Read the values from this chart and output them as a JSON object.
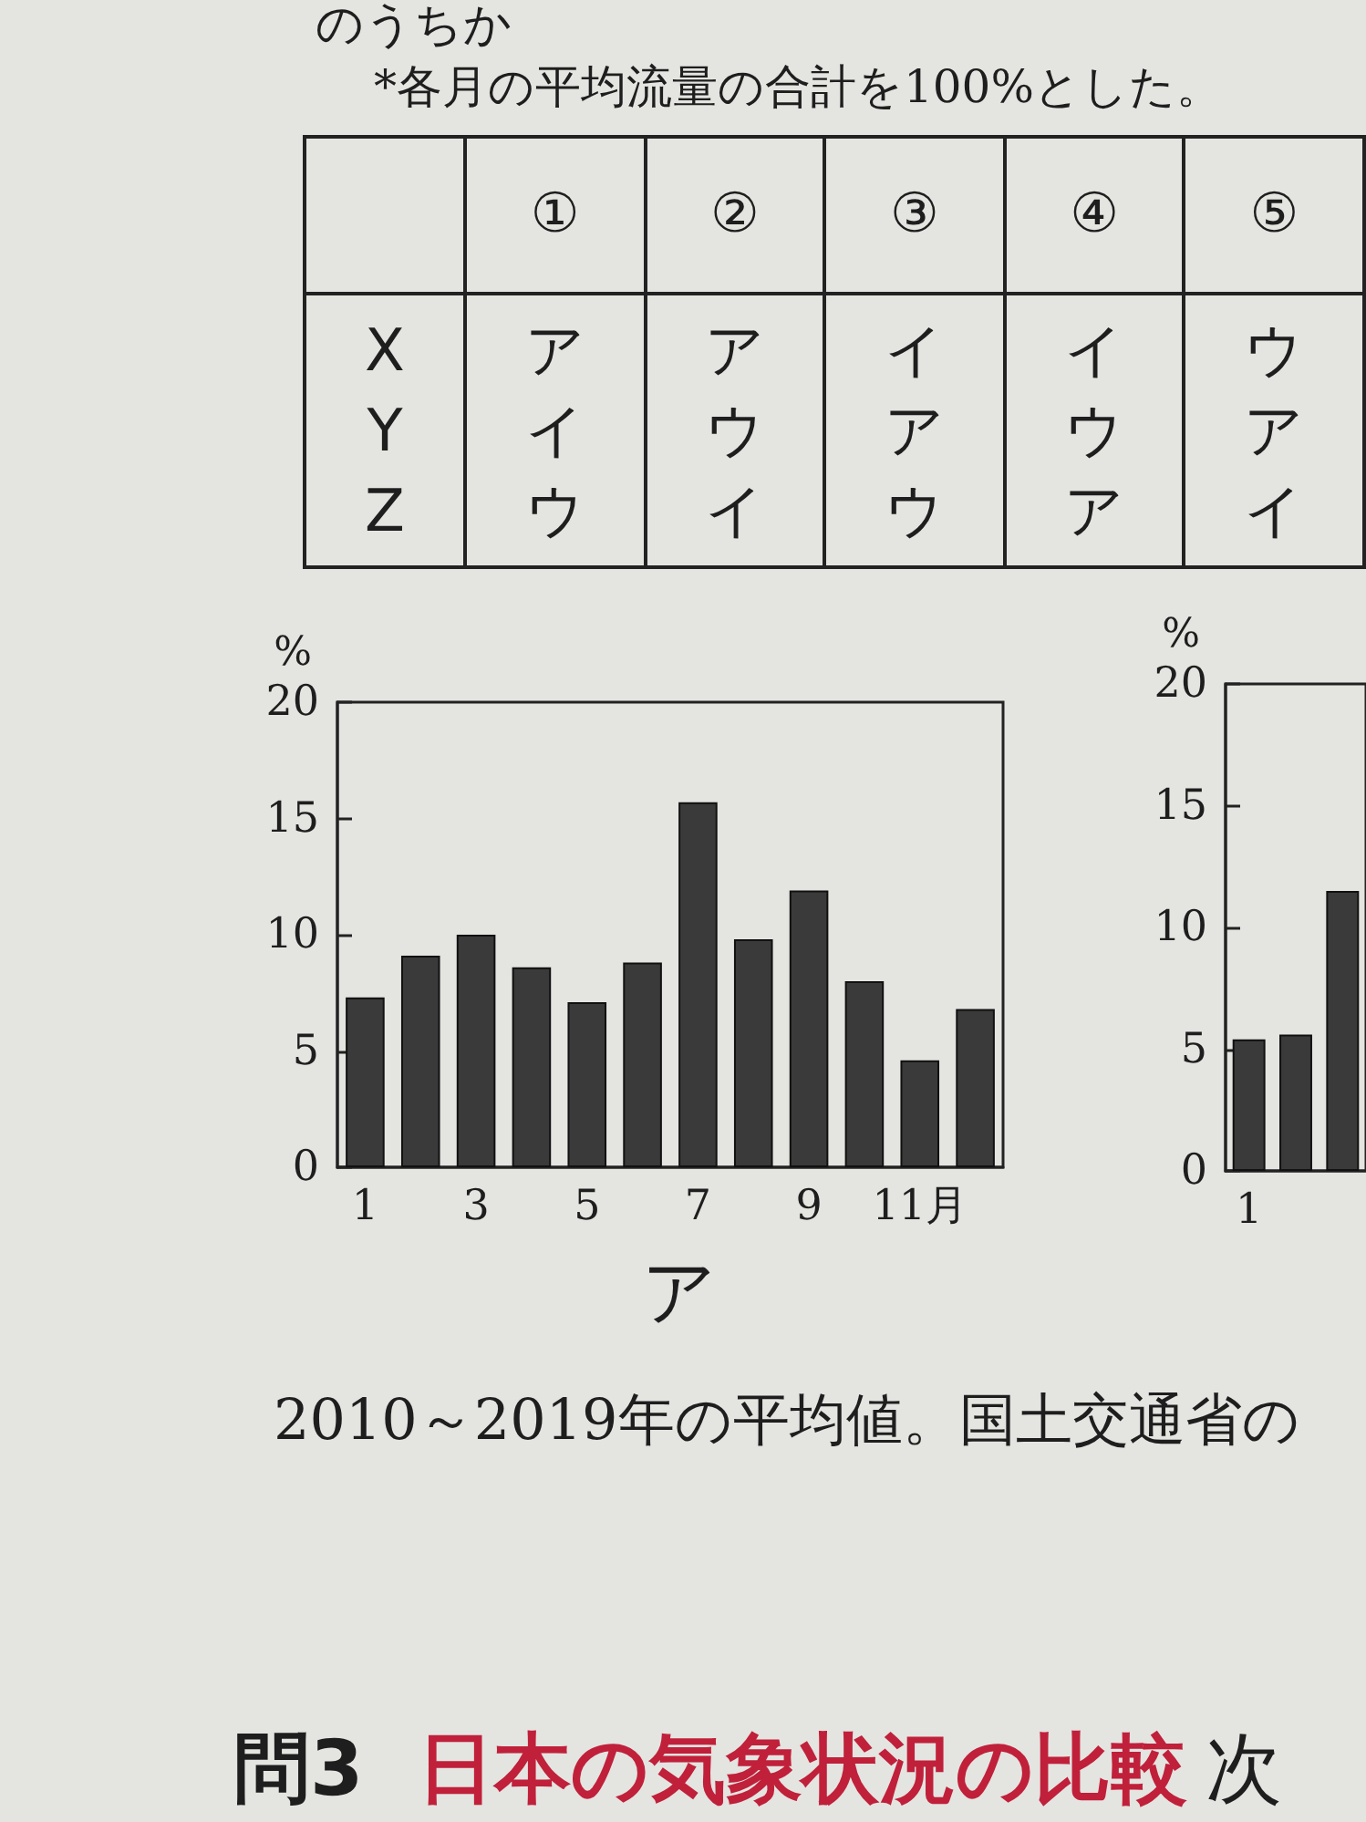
{
  "chart_data": [
    {
      "type": "other",
      "annotations": [
        "のうちか",
        "*各月の平均流量の合計を100%とした。"
      ],
      "categories": [
        "①",
        "②",
        "③",
        "④",
        "⑤"
      ],
      "y_categories": [
        "X",
        "Y",
        "Z"
      ],
      "cell_labels": [
        [
          "ア",
          "ア",
          "イ",
          "イ",
          "ウ"
        ],
        [
          "イ",
          "ウ",
          "ア",
          "ウ",
          "ア"
        ],
        [
          "ウ",
          "イ",
          "ウ",
          "ア",
          "イ"
        ]
      ]
    },
    {
      "type": "bar",
      "title": "ア",
      "ylabel": "%",
      "categories": [
        "1",
        null,
        "3",
        null,
        "5",
        null,
        "7",
        null,
        "9",
        null,
        "11月",
        null
      ],
      "values": [
        7.3,
        9.1,
        10.0,
        8.6,
        7.1,
        8.8,
        15.7,
        9.8,
        11.9,
        8.0,
        4.6,
        6.8
      ],
      "color": "#3a3a3a",
      "ylim": [
        0,
        20
      ],
      "yticks": [
        0,
        5,
        10,
        15,
        20
      ],
      "annotations": [
        "2010～2019年の平均値。国土交通省の",
        "問3",
        "日本の気象状況の比較",
        "次"
      ]
    },
    {
      "type": "bar",
      "ylabel": "%",
      "categories": [
        "1",
        null,
        null
      ],
      "values": [
        5.4,
        5.6,
        11.5
      ],
      "color": "#3a3a3a",
      "ylim": [
        0,
        20
      ],
      "yticks": [
        0,
        5,
        10,
        15,
        20
      ]
    }
  ]
}
